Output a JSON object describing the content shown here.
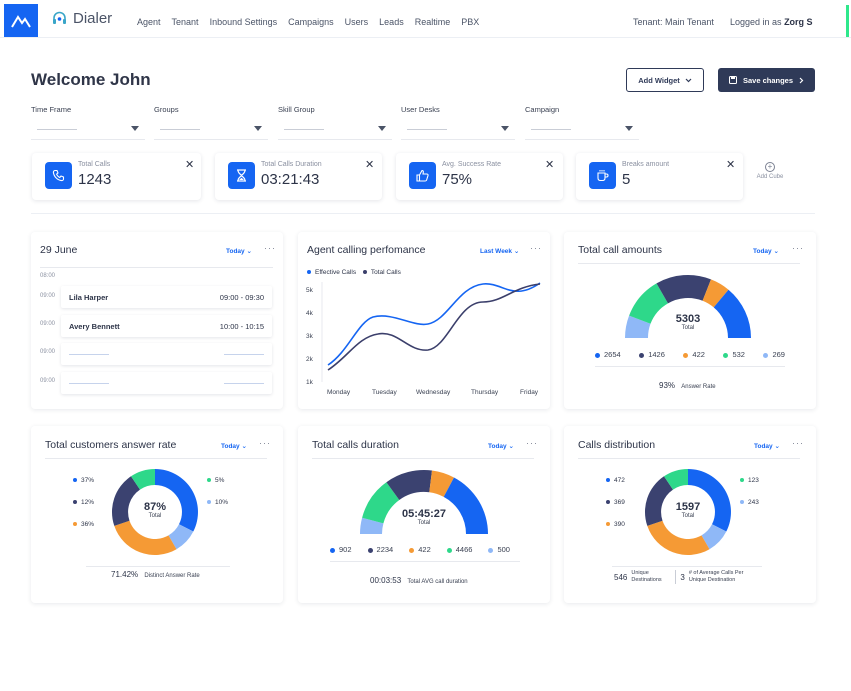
{
  "brand": {
    "name": "Dialer"
  },
  "nav": [
    "Agent",
    "Tenant",
    "Inbound Settings",
    "Campaigns",
    "Users",
    "Leads",
    "Realtime",
    "PBX"
  ],
  "header": {
    "tenant": "Tenant: Main Tenant",
    "logged_prefix": "Logged in as",
    "user": "Zorg S"
  },
  "page": {
    "welcome": "Welcome John",
    "add_widget": "Add Widget",
    "save_changes": "Save changes"
  },
  "filters": [
    "Time Frame",
    "Groups",
    "Skill Group",
    "User Desks",
    "Campaign"
  ],
  "cubes": [
    {
      "label": "Total Calls",
      "value": "1243",
      "icon": "phone-icon"
    },
    {
      "label": "Total Calls Duration",
      "value": "03:21:43",
      "icon": "hourglass-icon"
    },
    {
      "label": "Avg. Success Rate",
      "value": "75%",
      "icon": "thumbs-up-icon"
    },
    {
      "label": "Breaks amount",
      "value": "5",
      "icon": "coffee-cup-icon"
    }
  ],
  "add_cube": "Add Cube",
  "schedule": {
    "title": "29 June",
    "filter": "Today",
    "times": [
      "08:00",
      "09:00",
      "09:00",
      "09:00",
      "09:00"
    ],
    "rows": [
      {
        "name": "Lila Harper",
        "time": "09:00 - 09:30"
      },
      {
        "name": "Avery Bennett",
        "time": "10:00 - 10:15"
      }
    ]
  },
  "performance": {
    "title": "Agent calling perfomance",
    "filter": "Last Week",
    "legend": [
      "Effective Calls",
      "Total Calls"
    ],
    "colors": [
      "#1565f2",
      "#3b3f6b"
    ],
    "y_ticks": [
      "5k",
      "4k",
      "3k",
      "2k",
      "1k"
    ],
    "x_ticks": [
      "Monday",
      "Tuesday",
      "Wednesday",
      "Thursday",
      "Friday"
    ]
  },
  "total_call_amounts": {
    "title": "Total call amounts",
    "filter": "Today",
    "center_value": "5303",
    "center_label": "Total",
    "legend": [
      {
        "value": "2654",
        "color": "#1565f2"
      },
      {
        "value": "1426",
        "color": "#3b4270"
      },
      {
        "value": "422",
        "color": "#f59a35"
      },
      {
        "value": "532",
        "color": "#2ed88a"
      },
      {
        "value": "269",
        "color": "#8fb8f7"
      }
    ],
    "footer_value": "93%",
    "footer_label": "Answer Rate"
  },
  "answer_rate": {
    "title": "Total customers answer rate",
    "filter": "Today",
    "center_value": "87%",
    "center_label": "Total",
    "left_legend": [
      {
        "value": "37%",
        "color": "#1565f2"
      },
      {
        "value": "12%",
        "color": "#3b4270"
      },
      {
        "value": "36%",
        "color": "#f59a35"
      }
    ],
    "right_legend": [
      {
        "value": "5%",
        "color": "#2ed88a"
      },
      {
        "value": "10%",
        "color": "#8fb8f7"
      }
    ],
    "footer_value": "71.42%",
    "footer_label": "Distinct Answer Rate"
  },
  "calls_duration": {
    "title": "Total calls duration",
    "filter": "Today",
    "center_value": "05:45:27",
    "center_label": "Total",
    "legend": [
      {
        "value": "902",
        "color": "#1565f2"
      },
      {
        "value": "2234",
        "color": "#3b4270"
      },
      {
        "value": "422",
        "color": "#f59a35"
      },
      {
        "value": "4466",
        "color": "#2ed88a"
      },
      {
        "value": "500",
        "color": "#8fb8f7"
      }
    ],
    "footer_value": "00:03:53",
    "footer_label": "Total AVG call duration"
  },
  "calls_distribution": {
    "title": "Calls distribution",
    "filter": "Today",
    "center_value": "1597",
    "center_label": "Total",
    "left_legend": [
      {
        "value": "472",
        "color": "#1565f2"
      },
      {
        "value": "369",
        "color": "#3b4270"
      },
      {
        "value": "390",
        "color": "#f59a35"
      }
    ],
    "right_legend": [
      {
        "value": "123",
        "color": "#2ed88a"
      },
      {
        "value": "243",
        "color": "#8fb8f7"
      }
    ],
    "footer_left_value": "546",
    "footer_left_label": "Unique Destinations",
    "footer_right_value": "3",
    "footer_right_label": "# of Average Calls Per Unique Destination"
  }
}
